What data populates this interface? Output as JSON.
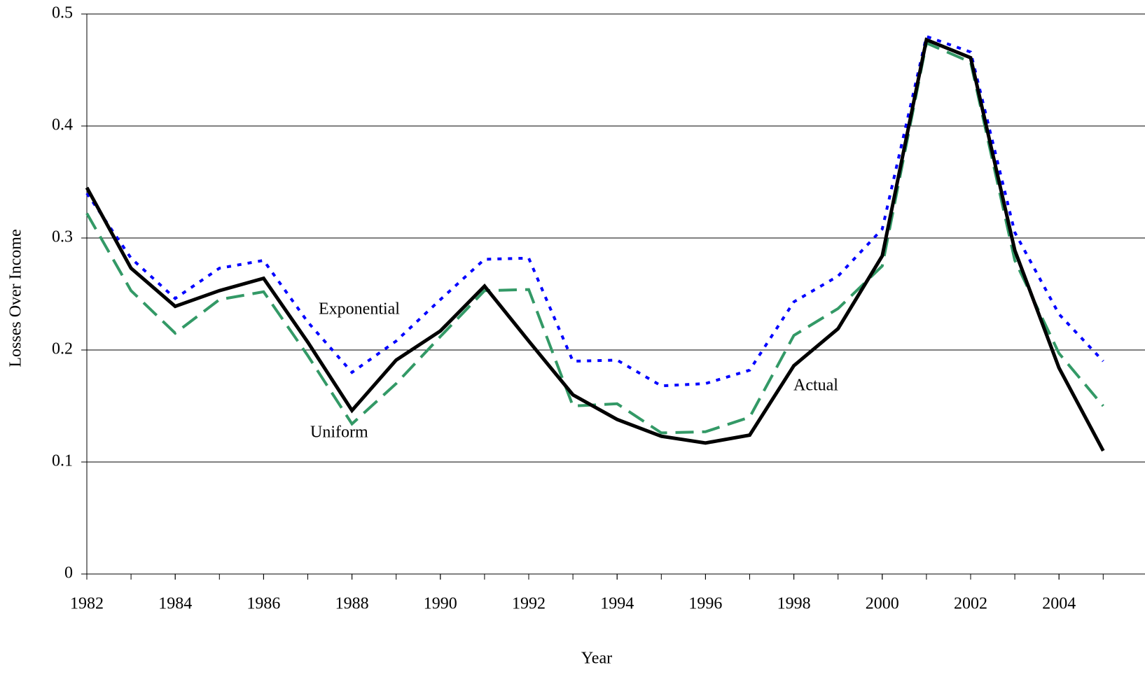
{
  "chart_data": {
    "type": "line",
    "xlabel": "Year",
    "ylabel": "Losses Over Income",
    "x": [
      1982,
      1983,
      1984,
      1985,
      1986,
      1987,
      1988,
      1989,
      1990,
      1991,
      1992,
      1993,
      1994,
      1995,
      1996,
      1997,
      1998,
      1999,
      2000,
      2001,
      2002,
      2003,
      2004,
      2005
    ],
    "series": [
      {
        "name": "Exponential",
        "color": "#0000ff",
        "dash": "dotted",
        "values": [
          0.34,
          0.282,
          0.246,
          0.273,
          0.28,
          0.225,
          0.18,
          0.208,
          0.245,
          0.281,
          0.282,
          0.19,
          0.191,
          0.168,
          0.17,
          0.182,
          0.243,
          0.266,
          0.308,
          0.48,
          0.466,
          0.305,
          0.232,
          0.19
        ]
      },
      {
        "name": "Uniform",
        "color": "#339966",
        "dash": "dashed",
        "values": [
          0.322,
          0.253,
          0.215,
          0.245,
          0.252,
          0.195,
          0.134,
          0.17,
          0.212,
          0.253,
          0.254,
          0.15,
          0.152,
          0.126,
          0.127,
          0.14,
          0.213,
          0.237,
          0.275,
          0.474,
          0.457,
          0.28,
          0.197,
          0.15
        ]
      },
      {
        "name": "Actual",
        "color": "#000000",
        "dash": "solid",
        "values": [
          0.345,
          0.273,
          0.239,
          0.253,
          0.264,
          0.207,
          0.146,
          0.191,
          0.217,
          0.257,
          0.208,
          0.16,
          0.138,
          0.123,
          0.117,
          0.124,
          0.186,
          0.219,
          0.284,
          0.477,
          0.461,
          0.289,
          0.184,
          0.11
        ]
      }
    ],
    "xlim": [
      1982,
      2006
    ],
    "xticks": [
      1982,
      1984,
      1986,
      1988,
      1990,
      1992,
      1994,
      1996,
      1998,
      2000,
      2002,
      2004
    ],
    "ylim": [
      0,
      0.5
    ],
    "yticks": [
      0,
      0.1,
      0.2,
      0.3,
      0.4,
      0.5
    ],
    "grid": true
  }
}
